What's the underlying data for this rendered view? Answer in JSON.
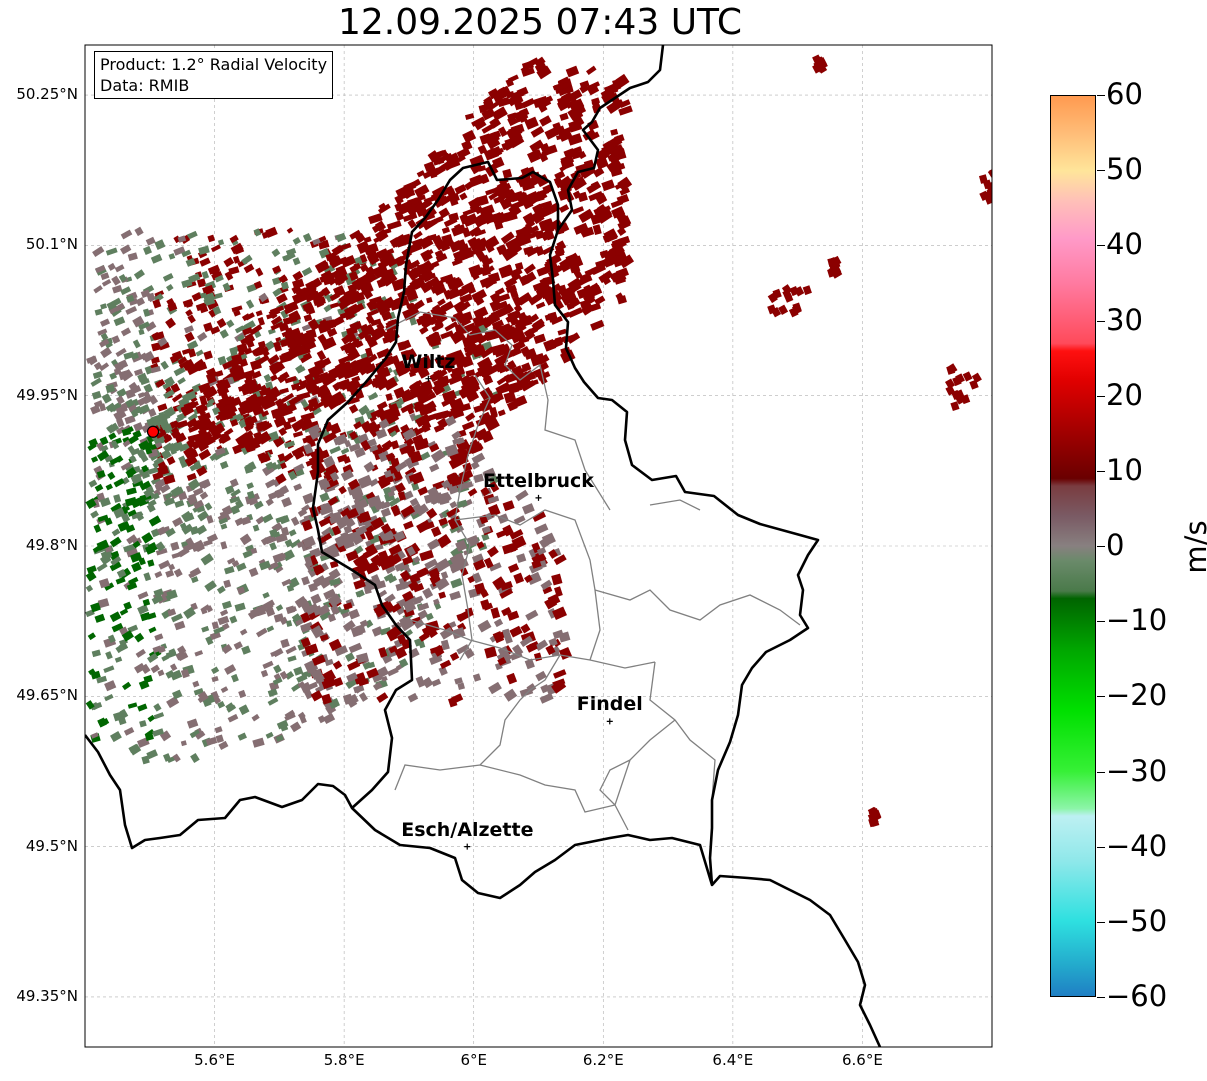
{
  "title": "12.09.2025 07:43 UTC",
  "info": {
    "product": "Product: 1.2° Radial Velocity",
    "data": "Data: RMIB"
  },
  "latitudes": [
    {
      "value": 50.25,
      "label": "50.25°N"
    },
    {
      "value": 50.1,
      "label": "50.1°N"
    },
    {
      "value": 49.95,
      "label": "49.95°N"
    },
    {
      "value": 49.8,
      "label": "49.8°N"
    },
    {
      "value": 49.65,
      "label": "49.65°N"
    },
    {
      "value": 49.5,
      "label": "49.5°N"
    },
    {
      "value": 49.35,
      "label": "49.35°N"
    }
  ],
  "longitudes": [
    {
      "value": 5.6,
      "label": "5.6°E"
    },
    {
      "value": 5.8,
      "label": "5.8°E"
    },
    {
      "value": 6.0,
      "label": "6°E"
    },
    {
      "value": 6.2,
      "label": "6.2°E"
    },
    {
      "value": 6.4,
      "label": "6.4°E"
    },
    {
      "value": 6.6,
      "label": "6.6°E"
    }
  ],
  "extent": {
    "lon_min": 5.4,
    "lon_max": 6.8,
    "lat_min": 49.3,
    "lat_max": 50.3
  },
  "cities": [
    {
      "name": "Wiltz",
      "lon": 5.93,
      "lat": 49.967
    },
    {
      "name": "Ettelbruck",
      "lon": 6.1,
      "lat": 49.848
    },
    {
      "name": "Findel",
      "lon": 6.21,
      "lat": 49.625
    },
    {
      "name": "Esch/Alzette",
      "lon": 5.99,
      "lat": 49.5
    }
  ],
  "radar_site": {
    "lon": 5.505,
    "lat": 49.914
  },
  "colorbar": {
    "label": "m/s",
    "min": -60,
    "max": 60,
    "ticks": [
      60,
      50,
      40,
      30,
      20,
      10,
      0,
      -10,
      -20,
      -30,
      -40,
      -50,
      -60
    ],
    "tick_labels": [
      "60",
      "50",
      "40",
      "30",
      "20",
      "10",
      "0",
      "−10",
      "−20",
      "−30",
      "−40",
      "−50",
      "−60"
    ],
    "stops": [
      {
        "v": -60,
        "color": "#1f7fc4"
      },
      {
        "v": -56,
        "color": "#23a9cc"
      },
      {
        "v": -50,
        "color": "#2ee0e0"
      },
      {
        "v": -42,
        "color": "#8fe8ea"
      },
      {
        "v": -36,
        "color": "#bdf0f2"
      },
      {
        "v": -35,
        "color": "#8cf5a8"
      },
      {
        "v": -30,
        "color": "#36f036"
      },
      {
        "v": -22,
        "color": "#00e000"
      },
      {
        "v": -14,
        "color": "#00a800"
      },
      {
        "v": -7,
        "color": "#006400"
      },
      {
        "v": -6,
        "color": "#4a7a4a"
      },
      {
        "v": -2,
        "color": "#6a8a6a"
      },
      {
        "v": 0,
        "color": "#888080"
      },
      {
        "v": 4,
        "color": "#7a5a64"
      },
      {
        "v": 8,
        "color": "#7a3c40"
      },
      {
        "v": 9,
        "color": "#6a0000"
      },
      {
        "v": 15,
        "color": "#a00000"
      },
      {
        "v": 22,
        "color": "#e00000"
      },
      {
        "v": 26,
        "color": "#ff1010"
      },
      {
        "v": 27,
        "color": "#ff4a5a"
      },
      {
        "v": 35,
        "color": "#ff7aa0"
      },
      {
        "v": 41,
        "color": "#ff9ac8"
      },
      {
        "v": 46,
        "color": "#ffc0b8"
      },
      {
        "v": 50,
        "color": "#ffe59a"
      },
      {
        "v": 55,
        "color": "#ffbd78"
      },
      {
        "v": 60,
        "color": "#ff9a50"
      }
    ]
  },
  "colors": {
    "receding": "#8b0000",
    "neutral": "#856e72",
    "approaching": "#5f7f5f",
    "approaching_strong": "#006600",
    "border": "#000000",
    "canton": "#808080",
    "grid": "#b0b0b0"
  }
}
